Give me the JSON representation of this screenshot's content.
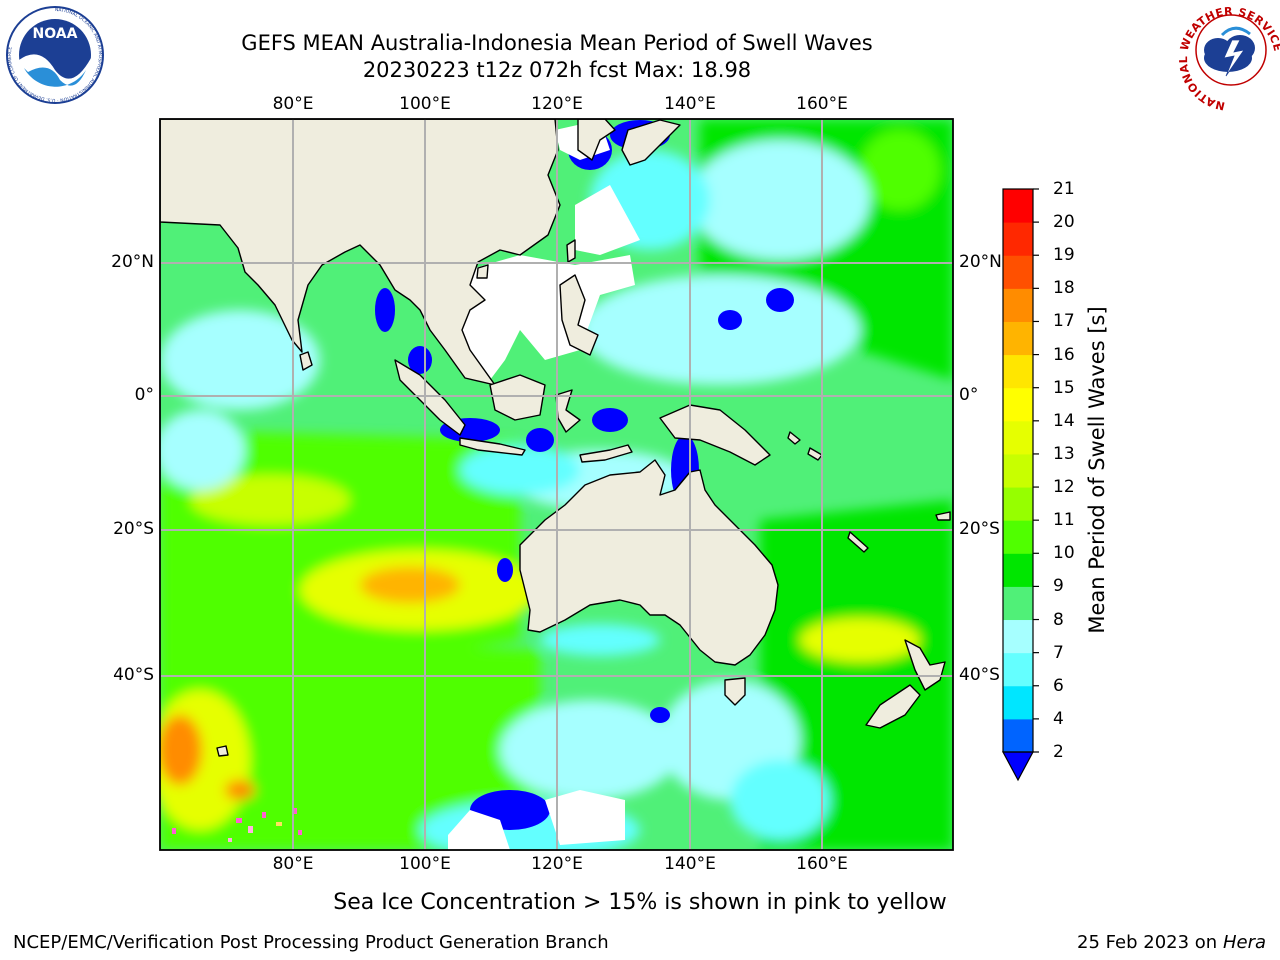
{
  "title": {
    "line1": "GEFS MEAN Australia-Indonesia Mean Period of Swell Waves",
    "line2": "20230223 t12z 072h fcst   Max: 18.98"
  },
  "map": {
    "projection": "lat-lon",
    "lon_range": [
      60,
      180
    ],
    "lat_range": [
      -68,
      42
    ],
    "gridlines": true,
    "lon_ticks_top": [
      "80°E",
      "100°E",
      "120°E",
      "140°E",
      "160°E"
    ],
    "lon_ticks_bottom": [
      "80°E",
      "100°E",
      "120°E",
      "140°E",
      "160°E"
    ],
    "lat_ticks_left": [
      "20°N",
      "0°",
      "20°S",
      "40°S"
    ],
    "lat_ticks_right": [
      "20°N",
      "0°",
      "20°S",
      "40°S"
    ],
    "land_color": "#efedde",
    "missing_color": "#ffffff"
  },
  "colorbar": {
    "label": "Mean Period of Swell Waves [s]",
    "ticks": [
      "2",
      "4",
      "6",
      "7",
      "8",
      "9",
      "10",
      "11",
      "12",
      "13",
      "14",
      "15",
      "16",
      "17",
      "18",
      "19",
      "20",
      "21"
    ],
    "colors": [
      "#0064ff",
      "#00e6ff",
      "#64ffff",
      "#a6ffff",
      "#50f078",
      "#00e600",
      "#50ff00",
      "#96ff00",
      "#c8ff00",
      "#e6ff00",
      "#ffff00",
      "#ffe600",
      "#ffb400",
      "#ff8c00",
      "#ff5000",
      "#ff2800",
      "#ff0000"
    ],
    "extend_low_color": "#0000ff"
  },
  "logos": {
    "noaa": {
      "icon": "noaa-logo",
      "text": "NOAA",
      "ring_text": "NATIONAL OCEANIC AND ATMOSPHERIC ADMINISTRATION · U.S. DEPARTMENT OF COMMERCE"
    },
    "nws": {
      "icon": "nws-logo",
      "ring_text": "NATIONAL WEATHER SERVICE"
    }
  },
  "ice_note": "Sea Ice Concentration > 15% is shown in pink to yellow",
  "footer": {
    "left": "NCEP/EMC/Verification Post Processing Product Generation Branch",
    "right_date": "25 Feb 2023 on",
    "right_host": "Hera"
  }
}
